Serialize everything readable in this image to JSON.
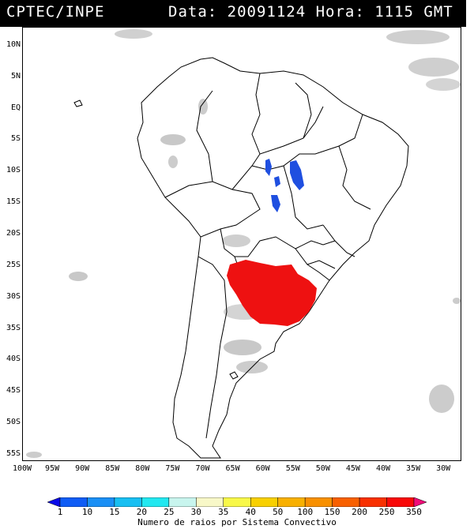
{
  "header": {
    "left": "CPTEC/INPE",
    "right": "Data: 20091124 Hora: 1115 GMT"
  },
  "map": {
    "lat_labels": [
      "10N",
      "5N",
      "EQ",
      "5S",
      "10S",
      "15S",
      "20S",
      "25S",
      "30S",
      "35S",
      "40S",
      "45S",
      "50S",
      "55S"
    ],
    "lat_values": [
      10,
      5,
      0,
      -5,
      -10,
      -15,
      -20,
      -25,
      -30,
      -35,
      -40,
      -45,
      -50,
      -55
    ],
    "lon_labels": [
      "100W",
      "95W",
      "90W",
      "85W",
      "80W",
      "75W",
      "70W",
      "65W",
      "60W",
      "55W",
      "50W",
      "45W",
      "40W",
      "35W",
      "30W"
    ],
    "lon_values": [
      -100,
      -95,
      -90,
      -85,
      -80,
      -75,
      -70,
      -65,
      -60,
      -55,
      -50,
      -45,
      -40,
      -35,
      -30
    ],
    "extent": {
      "lon_min": -100,
      "lon_max": -27,
      "lat_min": -56,
      "lat_max": 13
    },
    "colors": {
      "coast": "#000000",
      "cloud": "#c8c8c8",
      "convective_blue": "#1f4fe0",
      "convective_red": "#ee1111"
    }
  },
  "colorbar": {
    "labels": [
      "1",
      "10",
      "15",
      "20",
      "25",
      "30",
      "35",
      "40",
      "50",
      "100",
      "150",
      "200",
      "250",
      "350"
    ],
    "colors": [
      "#0a0ae8",
      "#0f5cf5",
      "#1a8ff5",
      "#18bff2",
      "#22e8f0",
      "#c8f5ee",
      "#f8f8c8",
      "#f8f848",
      "#f8d000",
      "#f8b000",
      "#f89000",
      "#f86000",
      "#f83000",
      "#f80808",
      "#f00a78"
    ],
    "title": "Numero de raios por Sistema Convectivo"
  }
}
